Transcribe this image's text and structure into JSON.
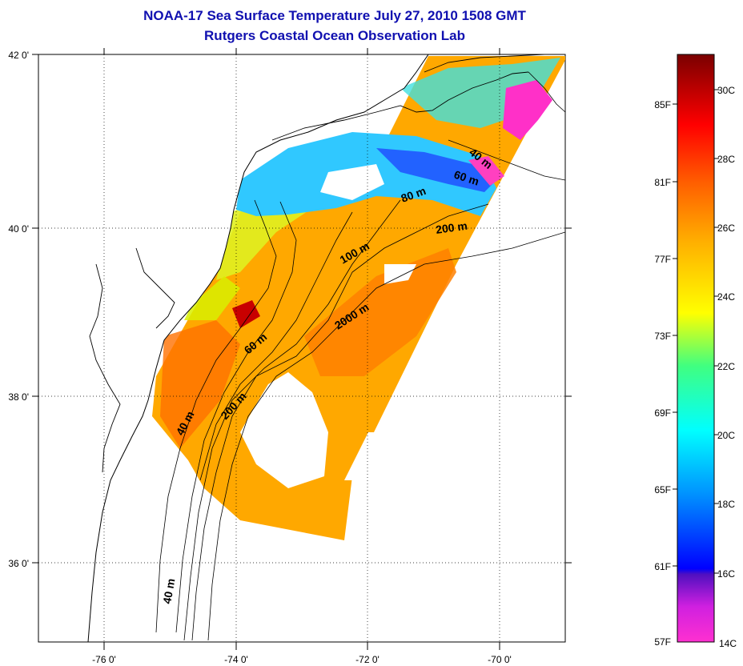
{
  "title": {
    "line1": "NOAA-17 Sea Surface Temperature July 27, 2010 1508 GMT",
    "line2": "Rutgers Coastal Ocean Observation Lab"
  },
  "axes": {
    "lon_labels": [
      "-76 0'",
      "-74 0'",
      "-72 0'",
      "-70 0'"
    ],
    "lat_labels": [
      "42 0'",
      "40 0'",
      "38 0'",
      "36 0'"
    ]
  },
  "isobaths": [
    {
      "label": "40 m"
    },
    {
      "label": "60 m"
    },
    {
      "label": "80 m"
    },
    {
      "label": "200 m"
    },
    {
      "label": "100 m"
    },
    {
      "label": "2000 m"
    },
    {
      "label": "60 m"
    },
    {
      "label": "200 m"
    },
    {
      "label": "40 m"
    },
    {
      "label": "40 m"
    }
  ],
  "colorbar": {
    "fahrenheit": [
      "85F",
      "81F",
      "77F",
      "73F",
      "69F",
      "65F",
      "61F",
      "57F"
    ],
    "celsius": [
      "30C",
      "28C",
      "26C",
      "24C",
      "22C",
      "20C",
      "18C",
      "16C",
      "14C"
    ],
    "colors": [
      "#ff30d0",
      "#a020f0",
      "#0000ff",
      "#0090ff",
      "#00e0ff",
      "#40ff80",
      "#ffff00",
      "#ffb000",
      "#ff6000",
      "#ff0000",
      "#800000"
    ]
  }
}
